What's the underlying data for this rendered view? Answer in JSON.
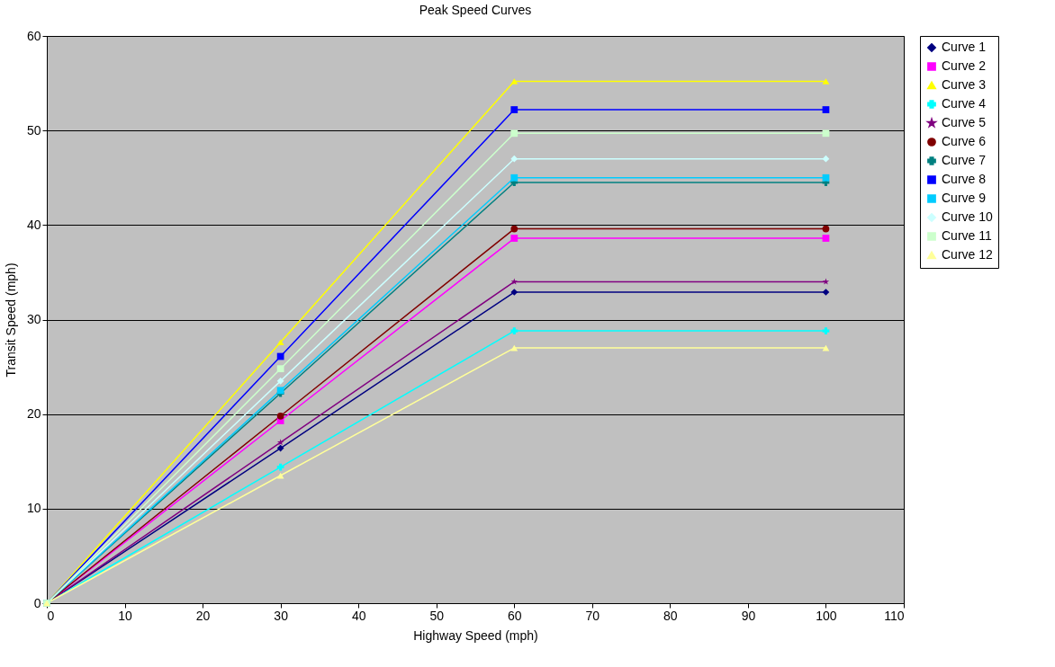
{
  "chart_data": {
    "type": "line",
    "title": "Peak Speed Curves",
    "xlabel": "Highway Speed (mph)",
    "ylabel": "Transit Speed (mph)",
    "x": [
      0,
      30,
      60,
      100
    ],
    "xlim": [
      0,
      110
    ],
    "xticks": [
      0,
      10,
      20,
      30,
      40,
      50,
      60,
      70,
      80,
      90,
      100,
      110
    ],
    "ylim": [
      0,
      60
    ],
    "yticks": [
      0,
      10,
      20,
      30,
      40,
      50,
      60
    ],
    "grid": "y",
    "legend": "right",
    "series": [
      {
        "name": "Curve 1",
        "color": "#000080",
        "marker": "diamond",
        "values": [
          0,
          16.4,
          32.9,
          32.9
        ]
      },
      {
        "name": "Curve 2",
        "color": "#ff00ff",
        "marker": "square",
        "values": [
          0,
          19.3,
          38.6,
          38.6
        ]
      },
      {
        "name": "Curve 3",
        "color": "#ffff00",
        "marker": "triangle",
        "values": [
          0,
          27.6,
          55.2,
          55.2
        ]
      },
      {
        "name": "Curve 4",
        "color": "#00ffff",
        "marker": "cross",
        "values": [
          0,
          14.4,
          28.8,
          28.8
        ]
      },
      {
        "name": "Curve 5",
        "color": "#800080",
        "marker": "star",
        "values": [
          0,
          17.0,
          34.0,
          34.0
        ]
      },
      {
        "name": "Curve 6",
        "color": "#800000",
        "marker": "circle",
        "values": [
          0,
          19.8,
          39.6,
          39.6
        ]
      },
      {
        "name": "Curve 7",
        "color": "#008080",
        "marker": "cross",
        "values": [
          0,
          22.2,
          44.5,
          44.5
        ]
      },
      {
        "name": "Curve 8",
        "color": "#0000ff",
        "marker": "square",
        "values": [
          0,
          26.1,
          52.2,
          52.2
        ]
      },
      {
        "name": "Curve 9",
        "color": "#00ccff",
        "marker": "square",
        "values": [
          0,
          22.5,
          45.0,
          45.0
        ]
      },
      {
        "name": "Curve 10",
        "color": "#ccffff",
        "marker": "diamond",
        "values": [
          0,
          23.5,
          47.0,
          47.0
        ]
      },
      {
        "name": "Curve 11",
        "color": "#ccffcc",
        "marker": "square",
        "values": [
          0,
          24.8,
          49.7,
          49.7
        ]
      },
      {
        "name": "Curve 12",
        "color": "#ffff99",
        "marker": "triangle",
        "values": [
          0,
          13.5,
          27.0,
          27.0
        ]
      }
    ]
  }
}
